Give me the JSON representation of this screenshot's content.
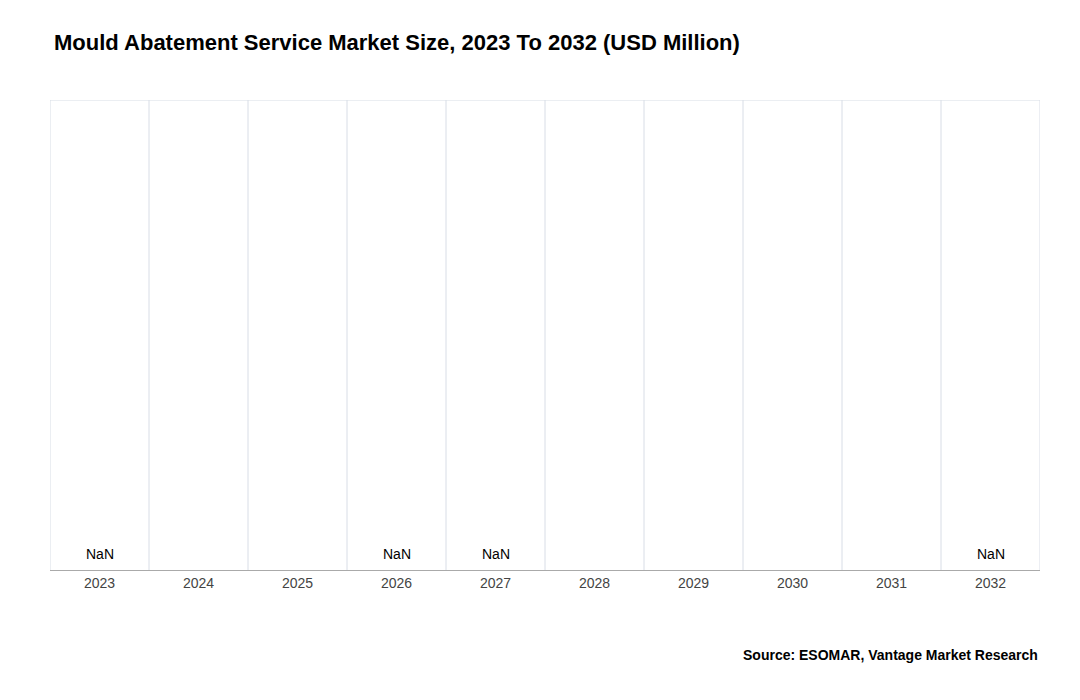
{
  "chart_data": {
    "type": "bar",
    "title": "Mould Abatement Service Market Size, 2023 To 2032 (USD Million)",
    "categories": [
      "2023",
      "2024",
      "2025",
      "2026",
      "2027",
      "2028",
      "2029",
      "2030",
      "2031",
      "2032"
    ],
    "values": [
      null,
      null,
      null,
      null,
      null,
      null,
      null,
      null,
      null,
      null
    ],
    "value_labels": [
      "NaN",
      null,
      null,
      "NaN",
      "NaN",
      null,
      null,
      null,
      null,
      "NaN"
    ],
    "data_labels": true,
    "annotations": [
      "Source: ESOMAR, Vantage Market Research"
    ],
    "ylim": [
      0,
      1
    ],
    "yticks": [],
    "tick_labels": "x",
    "grid": true
  }
}
